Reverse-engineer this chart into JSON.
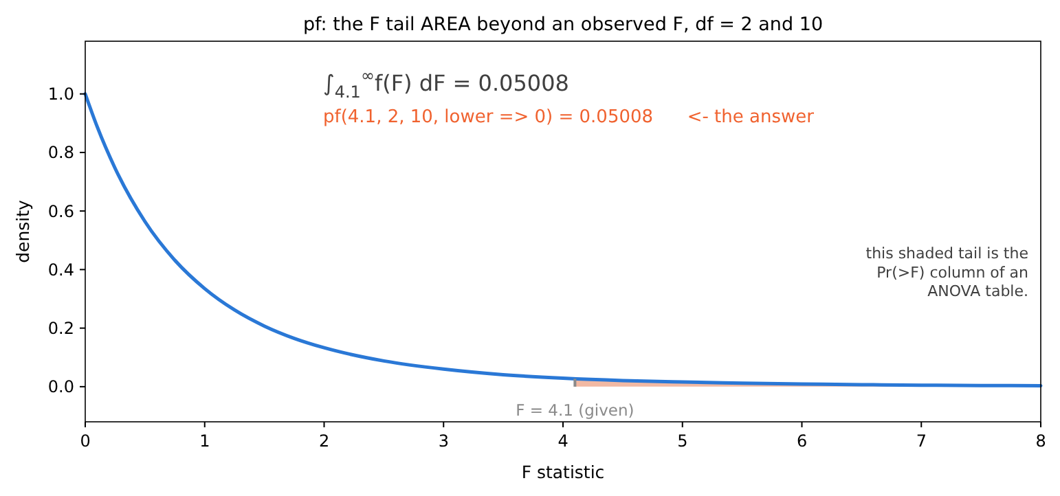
{
  "chart_data": {
    "type": "line",
    "title": "pf: the F tail AREA beyond an observed F, df = 2 and 10",
    "xlabel": "F statistic",
    "ylabel": "density",
    "series": [
      {
        "type": "area",
        "color": "#f2b9a3",
        "x": [
          4.1,
          4.5,
          5,
          5.5,
          6,
          6.5,
          7,
          7.5,
          8
        ],
        "values": [
          0.027,
          0.021,
          0.016,
          0.012,
          0.009,
          0.007,
          0.005,
          0.004,
          0.003
        ]
      },
      {
        "color": "#2a78d6",
        "x": [
          0,
          0.1,
          0.25,
          0.5,
          0.75,
          1,
          1.25,
          1.5,
          1.75,
          2,
          2.5,
          3,
          3.5,
          4,
          4.5,
          5,
          5.5,
          6,
          6.5,
          7,
          7.5,
          8
        ],
        "values": [
          1,
          0.888,
          0.746,
          0.564,
          0.432,
          0.335,
          0.262,
          0.207,
          0.165,
          0.133,
          0.088,
          0.06,
          0.041,
          0.029,
          0.021,
          0.016,
          0.012,
          0.009,
          0.007,
          0.005,
          0.004,
          0.003
        ]
      }
    ],
    "ref_lines": [
      {
        "axis": "x",
        "value": 4.1,
        "label": "F = 4.1 (given)",
        "color": "#8a8a8a"
      }
    ],
    "annotations": [
      "∫$_{4.1}$$^{∞}$f(F) dF = 0.05008",
      "pf(4.1, 2, 10, lower => 0) = 0.05008      <- the answer",
      "this shaded tail is the\nPr(>F) column of an\nANOVA table."
    ],
    "xlim": [
      0,
      8
    ],
    "xticks": [
      0,
      1,
      2,
      3,
      4,
      5,
      6,
      7,
      8
    ],
    "ylim": [
      -0.12,
      1.18
    ],
    "yticks": [
      {
        "value": 0,
        "label": "0.0"
      },
      0.2,
      0.4,
      0.6,
      0.8,
      {
        "value": 1,
        "label": "1.0"
      }
    ],
    "grid": false
  }
}
